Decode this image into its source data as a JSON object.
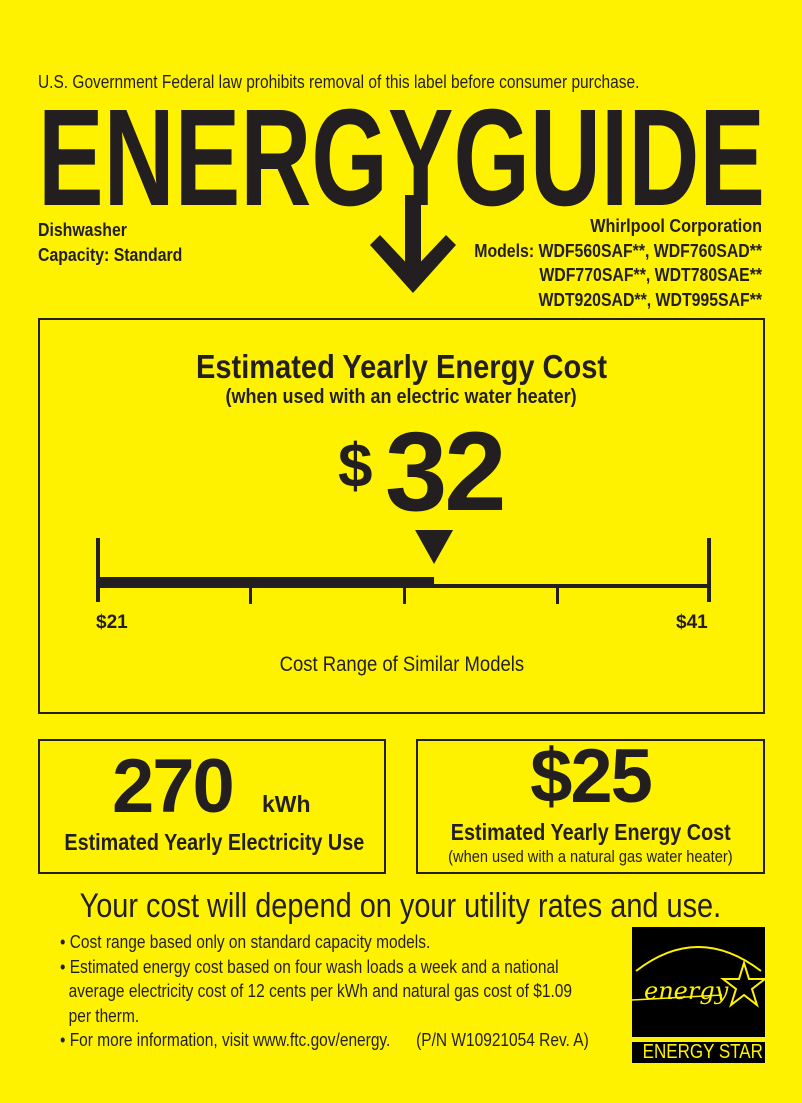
{
  "header": {
    "notice": "U.S. Government  Federal law prohibits removal of this label before consumer purchase.",
    "title": "ENERGYGUIDE"
  },
  "product": {
    "type": "Dishwasher",
    "capacity": "Capacity: Standard"
  },
  "manufacturer": {
    "name": "Whirlpool Corporation",
    "models": [
      "Models: WDF560SAF**, WDF760SAD**",
      "WDF770SAF**, WDT780SAE**",
      "WDT920SAD**, WDT995SAF**"
    ]
  },
  "main": {
    "title": "Estimated Yearly Energy Cost",
    "subtitle": "(when used with an electric water heater)",
    "dollar": "$",
    "value": "32",
    "range_min_label": "$21",
    "range_max_label": "$41",
    "range_min": 21,
    "range_max": 41,
    "range_value": 32,
    "range_caption": "Cost Range of Similar Models"
  },
  "electricity": {
    "value": "270",
    "unit": "kWh",
    "label": "Estimated Yearly Electricity Use"
  },
  "gas": {
    "value": "$25",
    "label": "Estimated Yearly Energy Cost",
    "sublabel": "(when used with a natural gas water heater)"
  },
  "footer": {
    "headline": "Your cost will depend on your utility rates and use.",
    "bullets": [
      "• Cost range based only on standard capacity models.",
      "• Estimated energy cost based on four wash loads a week and a national",
      "average electricity cost of 12 cents per kWh and natural gas cost of $1.09",
      "per therm.",
      "• For more information, visit www.ftc.gov/energy.      (P/N W10921054 Rev. A)"
    ]
  },
  "logo": {
    "script": "energy",
    "label": "ENERGY STAR"
  },
  "colors": {
    "background": "#fff200",
    "ink": "#231f20"
  }
}
